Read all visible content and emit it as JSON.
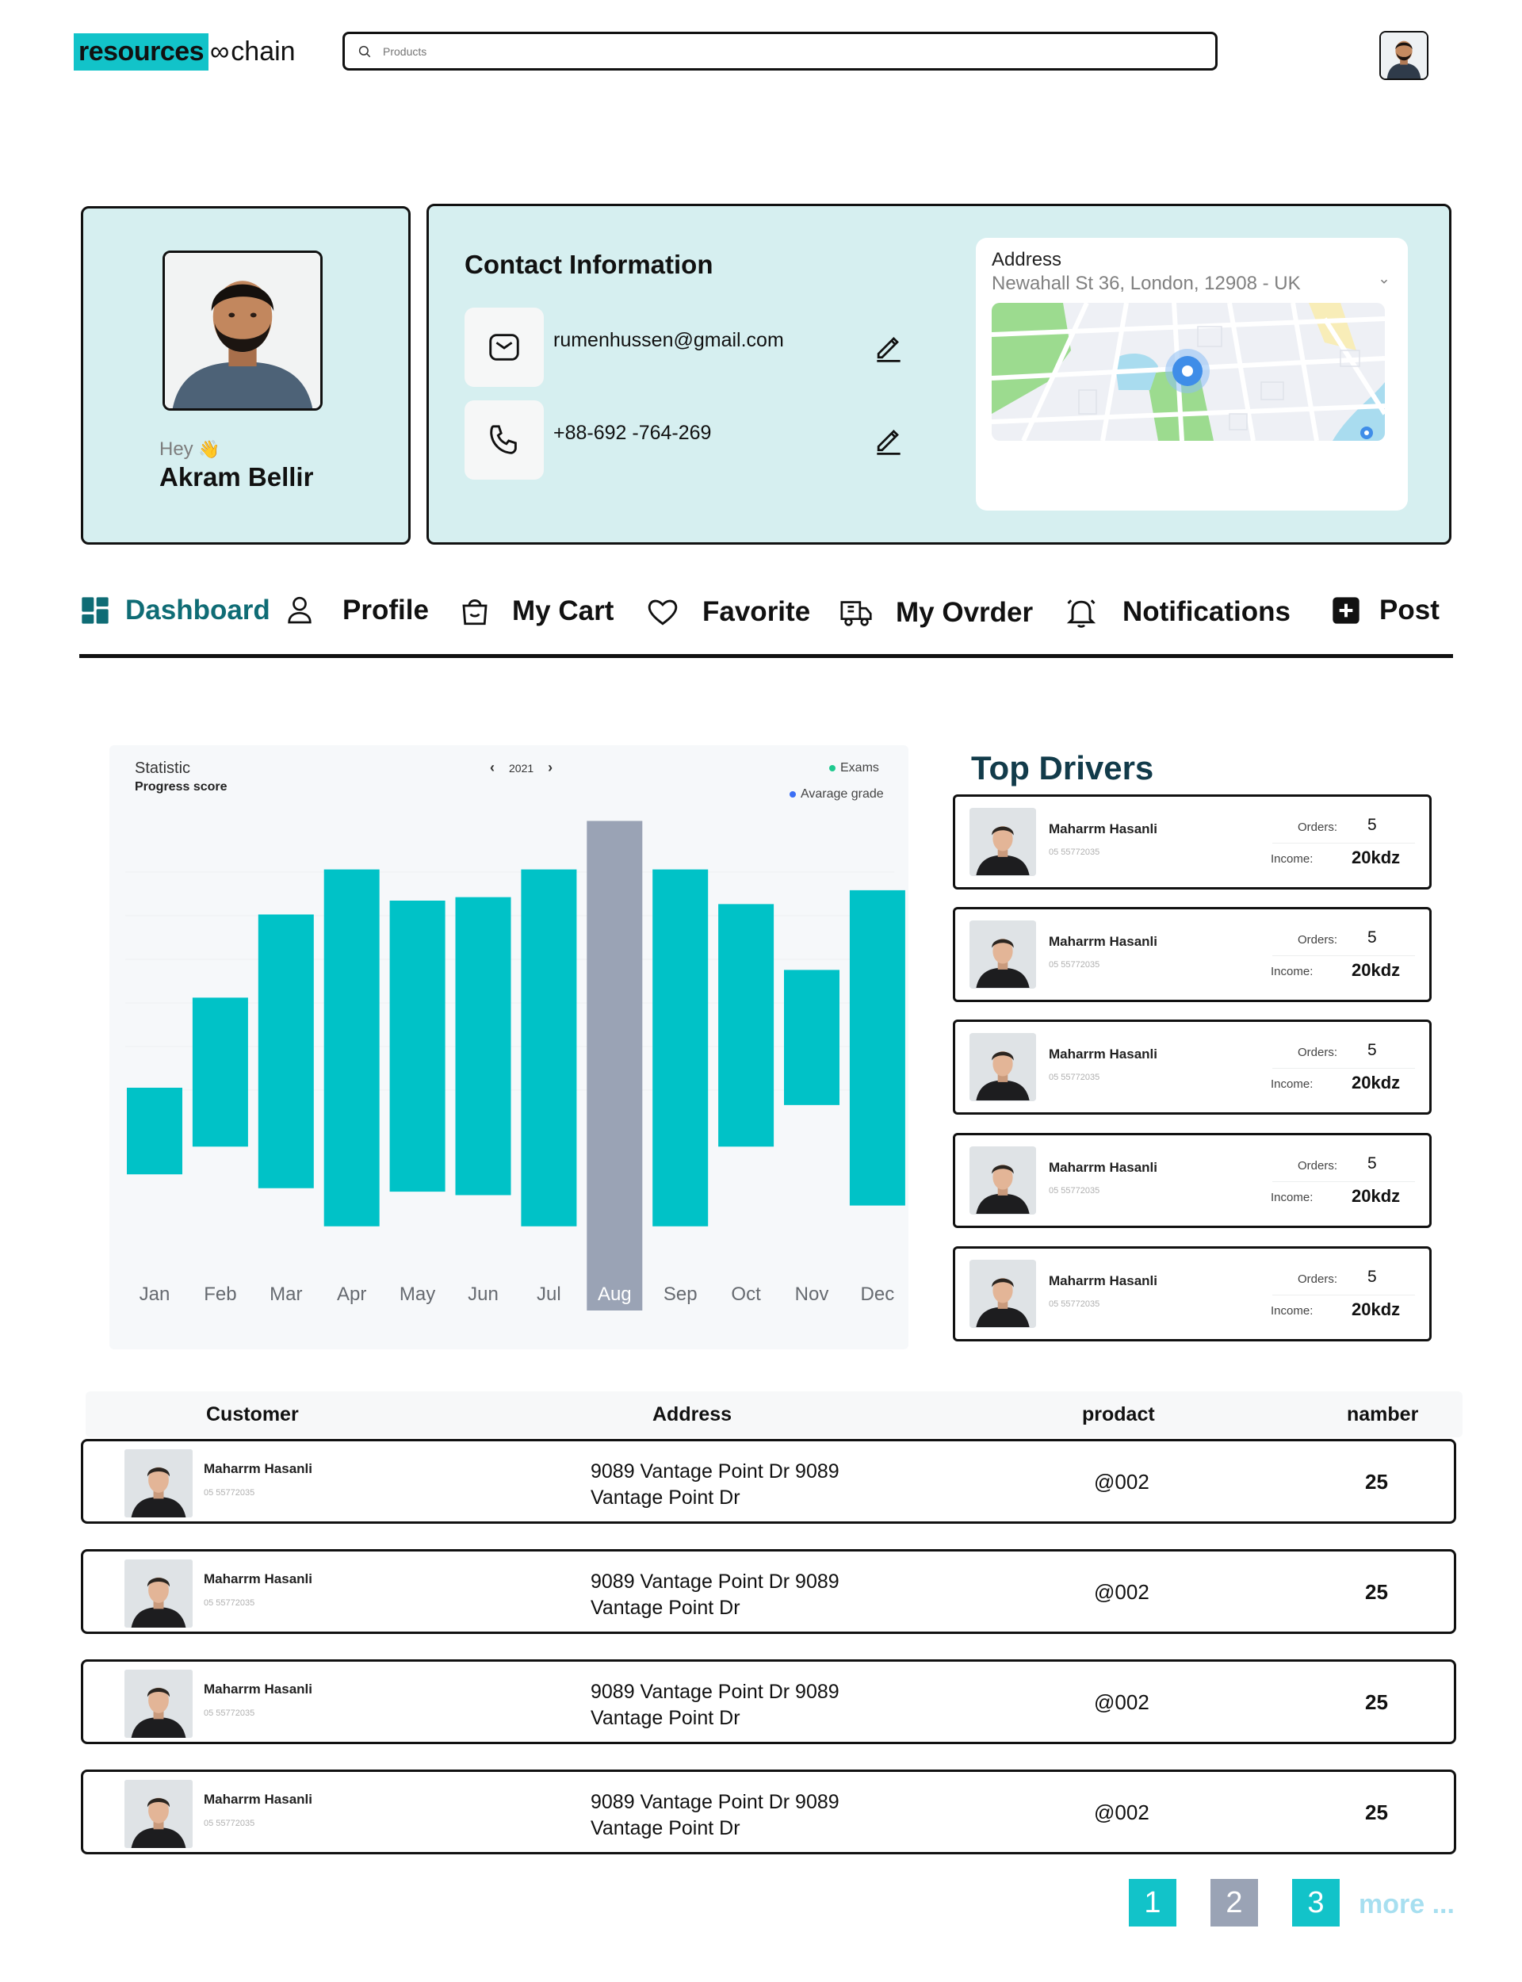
{
  "header": {
    "logo_highlight": "resources",
    "logo_symbol": "∞",
    "logo_tail": "chain",
    "search_placeholder": "Products"
  },
  "profile": {
    "greeting": "Hey",
    "wave_icon": "👋",
    "name": "Akram Bellir"
  },
  "contact": {
    "title": "Contact Information",
    "email": "rumenhussen@gmail.com",
    "phone": "+88-692 -764-269",
    "address_label": "Address",
    "address_value": "Newahall St 36, London, 12908 - UK"
  },
  "nav": {
    "items": [
      {
        "label": "Dashboard",
        "icon": "dashboard-icon"
      },
      {
        "label": "Profile",
        "icon": "user-icon"
      },
      {
        "label": "My Cart",
        "icon": "shopping-bag-icon"
      },
      {
        "label": "Favorite",
        "icon": "heart-icon"
      },
      {
        "label": "My Ovrder",
        "icon": "truck-icon"
      },
      {
        "label": "Notifications",
        "icon": "bell-icon"
      },
      {
        "label": "Post",
        "icon": "plus-square-icon"
      }
    ],
    "active": "Dashboard"
  },
  "chart_data": {
    "type": "bar",
    "title": "Statistic",
    "subtitle": "Progress score",
    "year": "2021",
    "legend": [
      {
        "name": "Exams",
        "color": "#1fc98f"
      },
      {
        "name": "Avarage grade",
        "color": "#3b6ff5"
      }
    ],
    "categories": [
      "Jan",
      "Feb",
      "Mar",
      "Apr",
      "May",
      "Jun",
      "Jul",
      "Aug",
      "Sep",
      "Oct",
      "Nov",
      "Dec"
    ],
    "bars": [
      {
        "low": 29,
        "high": 54
      },
      {
        "low": 37,
        "high": 80
      },
      {
        "low": 25,
        "high": 104
      },
      {
        "low": 14,
        "high": 117
      },
      {
        "low": 24,
        "high": 108
      },
      {
        "low": 23,
        "high": 109
      },
      {
        "low": 14,
        "high": 117
      },
      {
        "low": 14,
        "high": 131
      },
      {
        "low": 14,
        "high": 117
      },
      {
        "low": 37,
        "high": 107
      },
      {
        "low": 49,
        "high": 88
      },
      {
        "low": 20,
        "high": 111
      }
    ],
    "highlight_index": 7,
    "ylim": [
      0,
      135
    ],
    "colors": {
      "bar": "#00c2c7",
      "highlight": "#9aa3b5"
    },
    "grid": true
  },
  "drivers": {
    "title": "Top Drivers",
    "orders_label": "Orders:",
    "income_label": "Income:",
    "items": [
      {
        "name": "Maharrm Hasanli",
        "phone": "05 55772035",
        "orders": "5",
        "income": "20kdz"
      },
      {
        "name": "Maharrm Hasanli",
        "phone": "05 55772035",
        "orders": "5",
        "income": "20kdz"
      },
      {
        "name": "Maharrm Hasanli",
        "phone": "05 55772035",
        "orders": "5",
        "income": "20kdz"
      },
      {
        "name": "Maharrm Hasanli",
        "phone": "05 55772035",
        "orders": "5",
        "income": "20kdz"
      },
      {
        "name": "Maharrm Hasanli",
        "phone": "05 55772035",
        "orders": "5",
        "income": "20kdz"
      }
    ]
  },
  "table": {
    "headers": [
      "Customer",
      "Address",
      "prodact",
      "namber"
    ],
    "rows": [
      {
        "name": "Maharrm Hasanli",
        "phone": "05 55772035",
        "address": "9089 Vantage Point Dr 9089 Vantage Point Dr",
        "product": "@002",
        "number": "25"
      },
      {
        "name": "Maharrm Hasanli",
        "phone": "05 55772035",
        "address": "9089 Vantage Point Dr 9089 Vantage Point Dr",
        "product": "@002",
        "number": "25"
      },
      {
        "name": "Maharrm Hasanli",
        "phone": "05 55772035",
        "address": "9089 Vantage Point Dr 9089 Vantage Point Dr",
        "product": "@002",
        "number": "25"
      },
      {
        "name": "Maharrm Hasanli",
        "phone": "05 55772035",
        "address": "9089 Vantage Point Dr 9089 Vantage Point Dr",
        "product": "@002",
        "number": "25"
      }
    ]
  },
  "pagination": {
    "pages": [
      {
        "label": "1",
        "color": "#12c3c9"
      },
      {
        "label": "2",
        "color": "#9aa3b5"
      },
      {
        "label": "3",
        "color": "#12c3c9"
      }
    ],
    "more": "more ..."
  },
  "colors": {
    "accent": "#12c3c9",
    "card_bg": "#d6eff0",
    "nav_active": "#0f6c75",
    "drivers_title": "#123b4a"
  }
}
